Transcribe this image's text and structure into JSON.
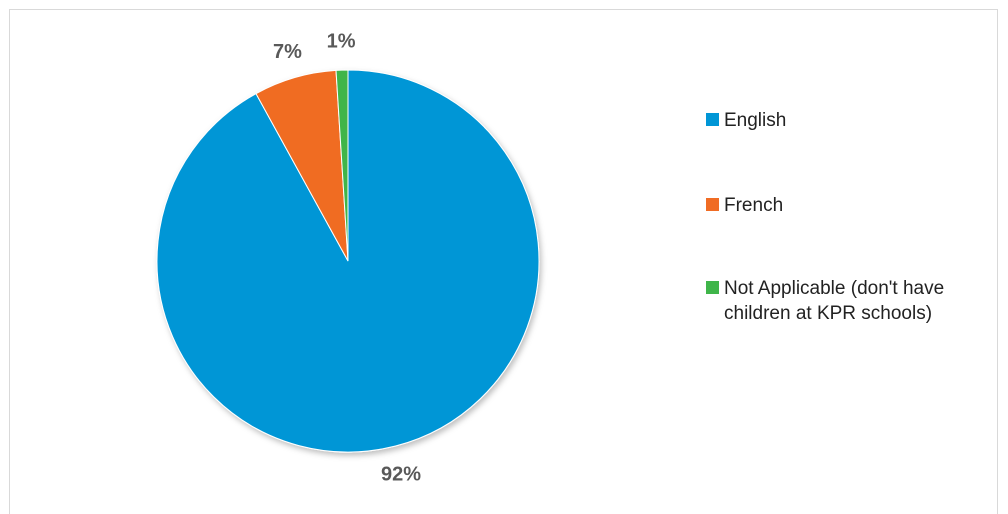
{
  "chart_data": {
    "type": "pie",
    "categories": [
      "English",
      "French",
      "Not Applicable (don't have children at KPR schools)"
    ],
    "values": [
      92,
      7,
      1
    ],
    "data_labels": [
      "92%",
      "7%",
      "1%"
    ],
    "colors": [
      "#0096d6",
      "#f06c24",
      "#3fb54a"
    ],
    "legend_position": "right",
    "start_angle": "12 o'clock",
    "direction": "clockwise"
  }
}
